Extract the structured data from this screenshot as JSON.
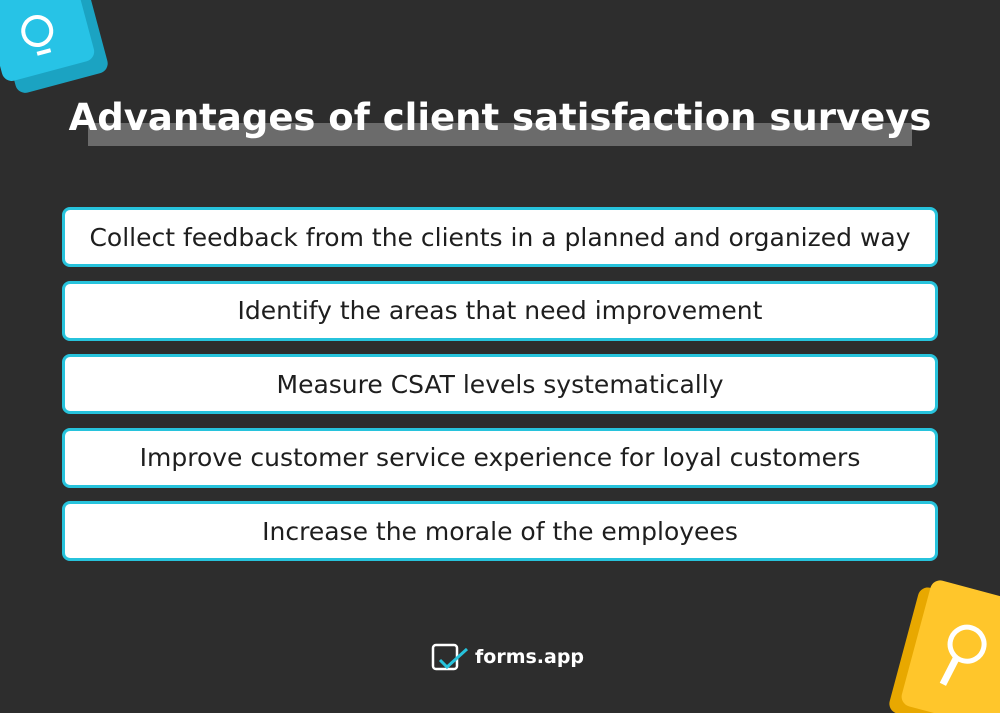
{
  "title": "Advantages of client satisfaction surveys",
  "items": [
    "Collect feedback from the clients in a planned and organized way",
    "Identify the areas that need improvement",
    "Measure CSAT levels systematically",
    "Improve customer service experience for loyal customers",
    "Increase the morale of the employees"
  ],
  "brand": "forms.app"
}
